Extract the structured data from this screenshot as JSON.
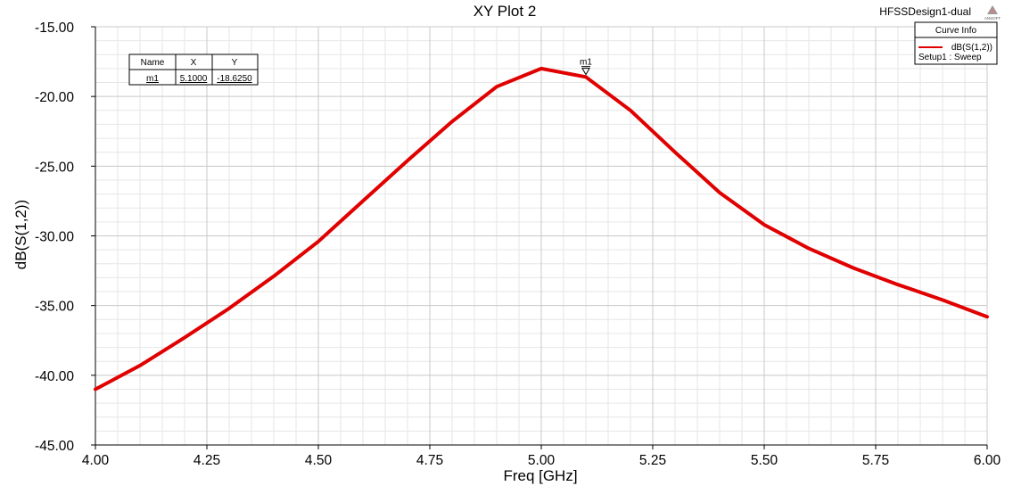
{
  "header": {
    "title": "XY Plot 2",
    "project": "HFSSDesign1-dual",
    "logo_text": "ANSOFT"
  },
  "marker_table": {
    "headers": [
      "Name",
      "X",
      "Y"
    ],
    "rows": [
      [
        "m1",
        "5.1000",
        "-18.6250"
      ]
    ]
  },
  "marker": {
    "label": "m1",
    "x": 5.1,
    "y": -18.625
  },
  "legend": {
    "title": "Curve Info",
    "entries": [
      {
        "name": "dB(S(1,2))",
        "setup": "Setup1 : Sweep"
      }
    ]
  },
  "colors": {
    "curve": "#e00000",
    "grid_major": "#c8c8c8",
    "grid_minor": "#e6e6e6"
  },
  "chart_data": {
    "type": "line",
    "title": "XY Plot 2",
    "xlabel": "Freq [GHz]",
    "ylabel": "dB(S(1,2))",
    "xlim": [
      4.0,
      6.0
    ],
    "ylim": [
      -45.0,
      -15.0
    ],
    "xticks": [
      "4.00",
      "4.25",
      "4.50",
      "4.75",
      "5.00",
      "5.25",
      "5.50",
      "5.75",
      "6.00"
    ],
    "yticks": [
      "-15.00",
      "-20.00",
      "-25.00",
      "-30.00",
      "-35.00",
      "-40.00",
      "-45.00"
    ],
    "grid": true,
    "legend_position": "top-right",
    "series": [
      {
        "name": "dB(S(1,2))",
        "x": [
          4.0,
          4.1,
          4.2,
          4.3,
          4.4,
          4.5,
          4.6,
          4.7,
          4.8,
          4.9,
          5.0,
          5.1,
          5.2,
          5.3,
          5.4,
          5.5,
          5.6,
          5.7,
          5.8,
          5.9,
          6.0
        ],
        "y": [
          -41.0,
          -39.3,
          -37.3,
          -35.2,
          -32.9,
          -30.4,
          -27.5,
          -24.6,
          -21.8,
          -19.3,
          -18.0,
          -18.6,
          -21.0,
          -24.0,
          -26.9,
          -29.2,
          -30.9,
          -32.3,
          -33.5,
          -34.6,
          -35.8
        ]
      }
    ]
  }
}
